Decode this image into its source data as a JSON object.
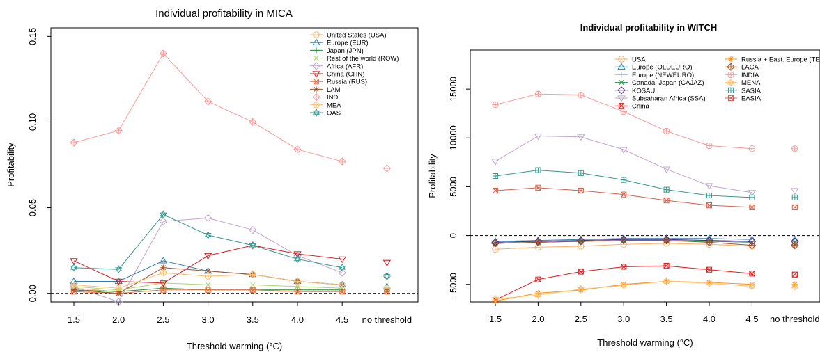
{
  "chart_data": [
    {
      "type": "line",
      "title": "Individual profitability in MICA",
      "xlabel": "Threshold warming (°C)",
      "ylabel": "Profitability",
      "categories": [
        "1.5",
        "2.0",
        "2.5",
        "3.0",
        "3.5",
        "4.0",
        "4.5",
        "no threshold"
      ],
      "yticks": [
        "0.00",
        "0.05",
        "0.10",
        "0.15"
      ],
      "ylim": [
        -0.005,
        0.155
      ],
      "grid": false,
      "legend_position": "top-right",
      "zero_line": true,
      "series": [
        {
          "name": "United States (USA)",
          "color": "#fdae61",
          "marker": "circle",
          "values": [
            0.003,
            0.001,
            0.003,
            0.002,
            0.002,
            0.002,
            0.002,
            0.002
          ]
        },
        {
          "name": "Europe (EUR)",
          "color": "#2c7bb6",
          "marker": "triangle",
          "values": [
            0.007,
            0.007,
            0.019,
            0.013,
            0.011,
            0.007,
            0.005,
            0.004
          ]
        },
        {
          "name": "Japan (JPN)",
          "color": "#1a9641",
          "marker": "plus",
          "values": [
            0.002,
            0.001,
            0.003,
            0.002,
            0.002,
            0.002,
            0.002,
            0.001
          ]
        },
        {
          "name": "Rest of the world (ROW)",
          "color": "#a6d96a",
          "marker": "x",
          "values": [
            0.004,
            0.002,
            0.006,
            0.005,
            0.005,
            0.004,
            0.003,
            0.003
          ]
        },
        {
          "name": "Africa (AFR)",
          "color": "#c2a5cf",
          "marker": "diamond",
          "values": [
            0.004,
            -0.005,
            0.042,
            0.044,
            0.037,
            0.022,
            0.012,
            0.01
          ]
        },
        {
          "name": "China (CHN)",
          "color": "#d7191c",
          "marker": "triangle-down",
          "values": [
            0.019,
            0.007,
            0.006,
            0.022,
            0.028,
            0.023,
            0.02,
            0.018
          ]
        },
        {
          "name": "Russia (RUS)",
          "color": "#f46d43",
          "marker": "square-x",
          "values": [
            0.001,
            0.0,
            0.002,
            0.002,
            0.002,
            0.001,
            0.001,
            0.001
          ]
        },
        {
          "name": "LAM",
          "color": "#a0522d",
          "marker": "asterisk",
          "values": [
            0.002,
            0.0,
            0.015,
            0.013,
            0.011,
            0.007,
            0.005,
            0.002
          ]
        },
        {
          "name": "IND",
          "color": "#fb9a99",
          "marker": "diamond-plus",
          "values": [
            0.088,
            0.095,
            0.14,
            0.112,
            0.1,
            0.084,
            0.077,
            0.073
          ]
        },
        {
          "name": "MEA",
          "color": "#fdbf6f",
          "marker": "circle-plus",
          "values": [
            0.005,
            0.003,
            0.012,
            0.01,
            0.011,
            0.007,
            0.005,
            0.003
          ]
        },
        {
          "name": "OAS",
          "color": "#35978f",
          "marker": "star-of-david",
          "values": [
            0.015,
            0.014,
            0.046,
            0.034,
            0.028,
            0.02,
            0.015,
            0.01
          ]
        }
      ]
    },
    {
      "type": "line",
      "title": "Individual profitability in WITCH",
      "xlabel": "Threshold warming (°C)",
      "ylabel": "Profitability",
      "categories": [
        "1.5",
        "2.0",
        "2.5",
        "3.0",
        "3.5",
        "4.0",
        "4.5",
        "no threshold"
      ],
      "yticks": [
        "-5000",
        "0",
        "5000",
        "10000",
        "15000"
      ],
      "ylim": [
        -6800,
        19000
      ],
      "grid": false,
      "legend_position": "top",
      "zero_line": true,
      "series": [
        {
          "name": "USA",
          "color": "#fdae61",
          "marker": "circle",
          "values": [
            -1400,
            -1200,
            -1100,
            -900,
            -800,
            -900,
            -1100,
            -1000
          ]
        },
        {
          "name": "Europe (OLDEURO)",
          "color": "#2c7bb6",
          "marker": "triangle",
          "values": [
            -600,
            -500,
            -400,
            -300,
            -300,
            -300,
            -400,
            -400
          ]
        },
        {
          "name": "Europe (NEWEURO)",
          "color": "#92c5de",
          "marker": "plus",
          "values": [
            -700,
            -600,
            -500,
            -400,
            -400,
            -500,
            -600,
            -600
          ]
        },
        {
          "name": "Canada, Japan (CAJAZ)",
          "color": "#1a9641",
          "marker": "x",
          "values": [
            -800,
            -700,
            -600,
            -500,
            -500,
            -600,
            -700,
            -700
          ]
        },
        {
          "name": "KOSAU",
          "color": "#542788",
          "marker": "diamond",
          "values": [
            -700,
            -600,
            -500,
            -400,
            -400,
            -500,
            -600,
            -600
          ]
        },
        {
          "name": "Subsaharan Africa (SSA)",
          "color": "#c2a5cf",
          "marker": "triangle-down",
          "values": [
            7600,
            10200,
            10100,
            8800,
            6800,
            5100,
            4400,
            4600
          ]
        },
        {
          "name": "China",
          "color": "#e31a1c",
          "marker": "square-x",
          "values": [
            -6600,
            -4500,
            -3700,
            -3200,
            -3100,
            -3500,
            -3900,
            -4000
          ]
        },
        {
          "name": "Russia + East. Europe (TE)",
          "color": "#ff8c00",
          "marker": "asterisk",
          "values": [
            -6700,
            -5900,
            -5600,
            -5000,
            -4700,
            -4800,
            -5000,
            -5000
          ]
        },
        {
          "name": "LACA",
          "color": "#a0522d",
          "marker": "diamond-plus",
          "values": [
            -800,
            -700,
            -600,
            -500,
            -500,
            -700,
            -1000,
            -1000
          ]
        },
        {
          "name": "INDIA",
          "color": "#fb9a99",
          "marker": "circle-plus",
          "values": [
            13400,
            14500,
            14400,
            12700,
            10700,
            9200,
            8900,
            8900
          ]
        },
        {
          "name": "MENA",
          "color": "#fdbf6f",
          "marker": "star-of-david",
          "values": [
            -6500,
            -6100,
            -5500,
            -5100,
            -4700,
            -4900,
            -5200,
            -5200
          ]
        },
        {
          "name": "SASIA",
          "color": "#35978f",
          "marker": "square-plus",
          "values": [
            6100,
            6700,
            6400,
            5700,
            4700,
            4100,
            3900,
            3900
          ]
        },
        {
          "name": "EASIA",
          "color": "#d6604d",
          "marker": "square-x",
          "values": [
            4600,
            4900,
            4600,
            4200,
            3600,
            3100,
            2900,
            2900
          ]
        }
      ]
    }
  ]
}
